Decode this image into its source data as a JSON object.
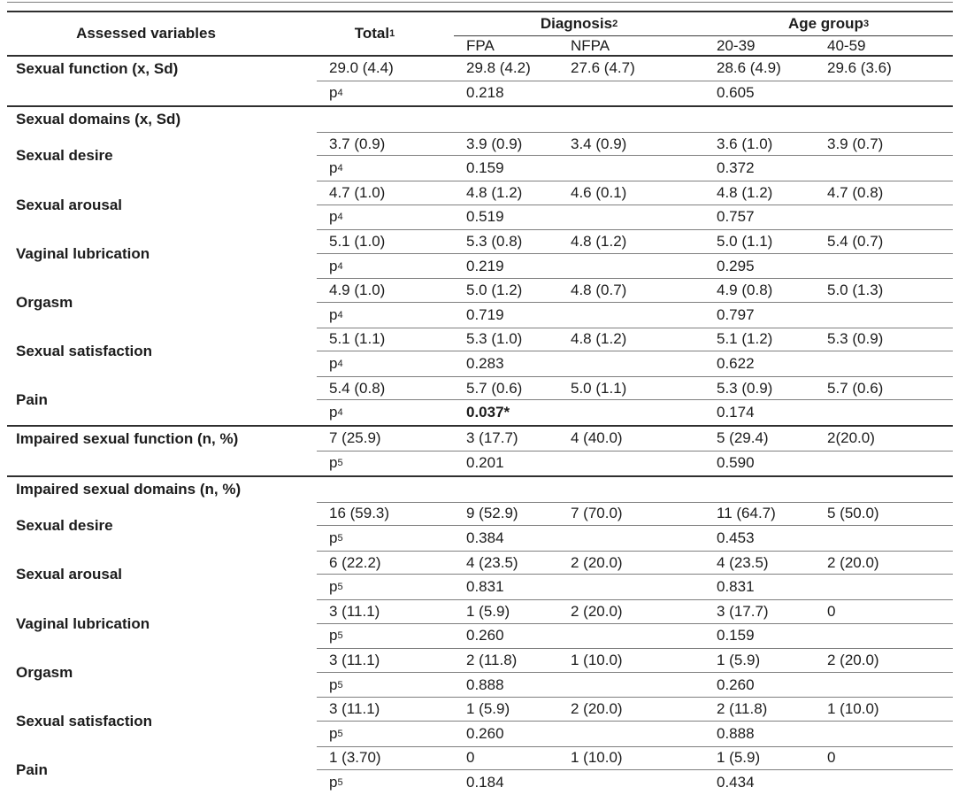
{
  "p_letter": "p",
  "header": {
    "assessed": "Assessed variables",
    "total": {
      "text": "Total",
      "sup": "1"
    },
    "diagnosis": {
      "text": "Diagnosis",
      "sup": "2"
    },
    "age_group": {
      "text": "Age group",
      "sup": "3"
    },
    "sub": [
      "FPA",
      "NFPA",
      "20-39",
      "40-59"
    ]
  },
  "blocks": [
    {
      "type": "pair",
      "label": "Sexual function (x, Sd)",
      "label_pos": "top",
      "no_top_border": true,
      "values": [
        "29.0 (4.4)",
        "29.8 (4.2)",
        "27.6 (4.7)",
        "28.6 (4.9)",
        "29.6 (3.6)"
      ],
      "p_sup": "4",
      "p_diag": "0.218",
      "p_age": "0.605"
    },
    {
      "type": "rule"
    },
    {
      "type": "label",
      "label": "Sexual domains (x, Sd)"
    },
    {
      "type": "pair",
      "label": "Sexual desire",
      "values": [
        "3.7 (0.9)",
        "3.9 (0.9)",
        "3.4 (0.9)",
        "3.6 (1.0)",
        "3.9 (0.7)"
      ],
      "p_sup": "4",
      "p_diag": "0.159",
      "p_age": "0.372"
    },
    {
      "type": "pair",
      "label": "Sexual arousal",
      "values": [
        "4.7 (1.0)",
        "4.8 (1.2)",
        "4.6 (0.1)",
        "4.8 (1.2)",
        "4.7 (0.8)"
      ],
      "p_sup": "4",
      "p_diag": "0.519",
      "p_age": "0.757"
    },
    {
      "type": "pair",
      "label": "Vaginal lubrication",
      "values": [
        "5.1 (1.0)",
        "5.3 (0.8)",
        "4.8 (1.2)",
        "5.0 (1.1)",
        "5.4 (0.7)"
      ],
      "p_sup": "4",
      "p_diag": "0.219",
      "p_age": "0.295"
    },
    {
      "type": "pair",
      "label": "Orgasm",
      "values": [
        "4.9 (1.0)",
        "5.0 (1.2)",
        "4.8 (0.7)",
        "4.9 (0.8)",
        "5.0 (1.3)"
      ],
      "p_sup": "4",
      "p_diag": "0.719",
      "p_age": "0.797"
    },
    {
      "type": "pair",
      "label": "Sexual satisfaction",
      "values": [
        "5.1 (1.1)",
        "5.3 (1.0)",
        "4.8 (1.2)",
        "5.1 (1.2)",
        "5.3 (0.9)"
      ],
      "p_sup": "4",
      "p_diag": "0.283",
      "p_age": "0.622"
    },
    {
      "type": "pair",
      "label": "Pain",
      "values": [
        "5.4 (0.8)",
        "5.7 (0.6)",
        "5.0 (1.1)",
        "5.3 (0.9)",
        "5.7 (0.6)"
      ],
      "p_sup": "4",
      "p_diag": "0.037*",
      "p_diag_bold": true,
      "p_age": "0.174"
    },
    {
      "type": "rule"
    },
    {
      "type": "pair",
      "label": "Impaired sexual function (n, %)",
      "label_pos": "top",
      "no_top_border": true,
      "values": [
        "7 (25.9)",
        "3 (17.7)",
        "4 (40.0)",
        "5 (29.4)",
        "2(20.0)"
      ],
      "p_sup": "5",
      "p_diag": "0.201",
      "p_age": "0.590"
    },
    {
      "type": "rule"
    },
    {
      "type": "label",
      "label": "Impaired sexual domains (n, %)"
    },
    {
      "type": "pair",
      "label": "Sexual desire",
      "values": [
        "16 (59.3)",
        "9 (52.9)",
        "7 (70.0)",
        "11 (64.7)",
        "5 (50.0)"
      ],
      "p_sup": "5",
      "p_diag": "0.384",
      "p_age": "0.453"
    },
    {
      "type": "pair",
      "label": "Sexual arousal",
      "values": [
        "6 (22.2)",
        "4 (23.5)",
        "2 (20.0)",
        "4 (23.5)",
        "2 (20.0)"
      ],
      "p_sup": "5",
      "p_diag": "0.831",
      "p_age": "0.831"
    },
    {
      "type": "pair",
      "label": "Vaginal lubrication",
      "values": [
        "3 (11.1)",
        "1 (5.9)",
        "2 (20.0)",
        "3 (17.7)",
        "0"
      ],
      "p_sup": "5",
      "p_diag": "0.260",
      "p_age": "0.159"
    },
    {
      "type": "pair",
      "label": "Orgasm",
      "values": [
        "3 (11.1)",
        "2 (11.8)",
        "1 (10.0)",
        "1 (5.9)",
        "2 (20.0)"
      ],
      "p_sup": "5",
      "p_diag": "0.888",
      "p_age": "0.260"
    },
    {
      "type": "pair",
      "label": "Sexual satisfaction",
      "values": [
        "3 (11.1)",
        "1 (5.9)",
        "2 (20.0)",
        "2 (11.8)",
        "1 (10.0)"
      ],
      "p_sup": "5",
      "p_diag": "0.260",
      "p_age": "0.888"
    },
    {
      "type": "pair",
      "label": "Pain",
      "values": [
        "1 (3.70)",
        "0",
        "1 (10.0)",
        "1 (5.9)",
        "0"
      ],
      "p_sup": "5",
      "p_diag": "0.184",
      "p_age": "0.434"
    },
    {
      "type": "rule"
    }
  ]
}
